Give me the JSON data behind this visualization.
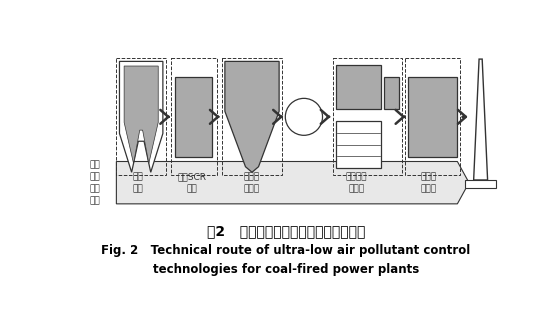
{
  "bg_color": "#ffffff",
  "title_cn": "图2   燃煤烟气污染物超低排放技术路线",
  "title_en_line1": "Fig. 2   Technical route of ultra-low air pollutant control",
  "title_en_line2": "technologies for coal-fired power plants",
  "label_left": "超低\n排放\n治理\n单元",
  "labels_bottom": [
    "低氮\n燃烧",
    "精细SCR\n脱硝",
    "低低温\n电除尘",
    "单塔双循\n环脱硫",
    "湿式深\n度净化"
  ],
  "fig_width": 5.59,
  "fig_height": 3.32,
  "dark": "#333333",
  "mid_gray": "#aaaaaa",
  "arrow_bg": "#e8e8e8",
  "dashed_lw": 0.7,
  "device_lw": 0.9
}
